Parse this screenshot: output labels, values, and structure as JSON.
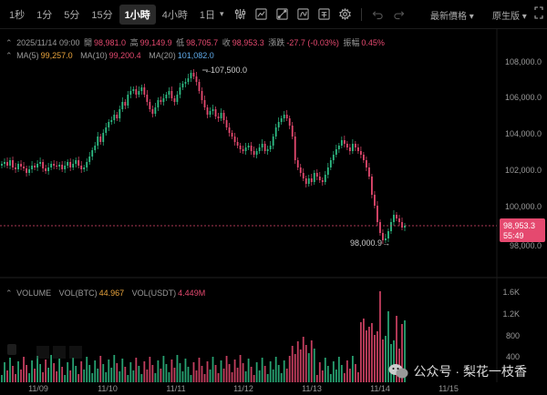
{
  "toolbar": {
    "timeframes": [
      "1秒",
      "1分",
      "5分",
      "15分",
      "1小時",
      "4小時",
      "1日"
    ],
    "active_index": 4,
    "latest_price_label": "最新價格",
    "original_label": "原生版"
  },
  "info_bar": {
    "date": "2025/11/14 09:00",
    "open_label": "開",
    "open": "98,981.0",
    "high_label": "高",
    "high": "99,149.9",
    "low_label": "低",
    "low": "98,705.7",
    "close_label": "收",
    "close": "98,953.3",
    "change_label": "漲跌",
    "change": "-27.7 (-0.03%)",
    "amp_label": "振幅",
    "amp": "0.45%"
  },
  "ma_bar": {
    "ma5_label": "MA(5)",
    "ma5": "99,257.0",
    "ma10_label": "MA(10)",
    "ma10": "99,200.4",
    "ma20_label": "MA(20)",
    "ma20": "101,082.0"
  },
  "volume_bar": {
    "label": "VOLUME",
    "vol_btc_label": "VOL(BTC)",
    "vol_btc": "44.967",
    "vol_usdt_label": "VOL(USDT)",
    "vol_usdt": "4.449M"
  },
  "price_axis": [
    "108,000.0",
    "106,000.0",
    "104,000.0",
    "102,000.0",
    "100,000.0",
    "98,000.0"
  ],
  "volume_axis": [
    "1.6K",
    "1.2K",
    "800",
    "400"
  ],
  "date_axis": [
    "11/09",
    "11/10",
    "11/11",
    "11/12",
    "11/13",
    "11/14",
    "11/15"
  ],
  "current_price": {
    "price": "98,953.3",
    "countdown": "55:49"
  },
  "annotations": {
    "high": "107,500.0",
    "low": "98,000.9"
  },
  "watermark": {
    "text": "公众号 · 梨花一枝香"
  },
  "colors": {
    "up": "#2ebd85",
    "down": "#e5496f",
    "background": "#000000"
  }
}
